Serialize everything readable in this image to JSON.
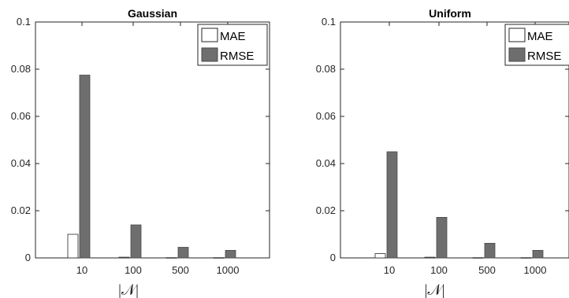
{
  "colors": {
    "mae": "#ffffff",
    "rmse": "#6e6e6e",
    "axis": "#262626"
  },
  "chart_data": [
    {
      "type": "bar",
      "title": "Gaussian",
      "xlabel": "|𝒩|",
      "ylabel": "",
      "categories": [
        "10",
        "100",
        "500",
        "1000"
      ],
      "ylim": [
        0,
        0.1
      ],
      "yticks": [
        "0",
        "0.02",
        "0.04",
        "0.06",
        "0.08",
        "0.1"
      ],
      "legend": "top-right",
      "series": [
        {
          "name": "MAE",
          "values": [
            0.01,
            0.0003,
            0.0001,
            0.0001
          ]
        },
        {
          "name": "RMSE",
          "values": [
            0.0775,
            0.014,
            0.0045,
            0.0032
          ]
        }
      ]
    },
    {
      "type": "bar",
      "title": "Uniform",
      "xlabel": "|𝒩|",
      "ylabel": "",
      "categories": [
        "10",
        "100",
        "500",
        "1000"
      ],
      "ylim": [
        0,
        0.1
      ],
      "yticks": [
        "0",
        "0.02",
        "0.04",
        "0.06",
        "0.08",
        "0.1"
      ],
      "legend": "top-right",
      "series": [
        {
          "name": "MAE",
          "values": [
            0.0018,
            0.0003,
            0.0001,
            0.0001
          ]
        },
        {
          "name": "RMSE",
          "values": [
            0.045,
            0.0172,
            0.0062,
            0.0032
          ]
        }
      ]
    }
  ]
}
